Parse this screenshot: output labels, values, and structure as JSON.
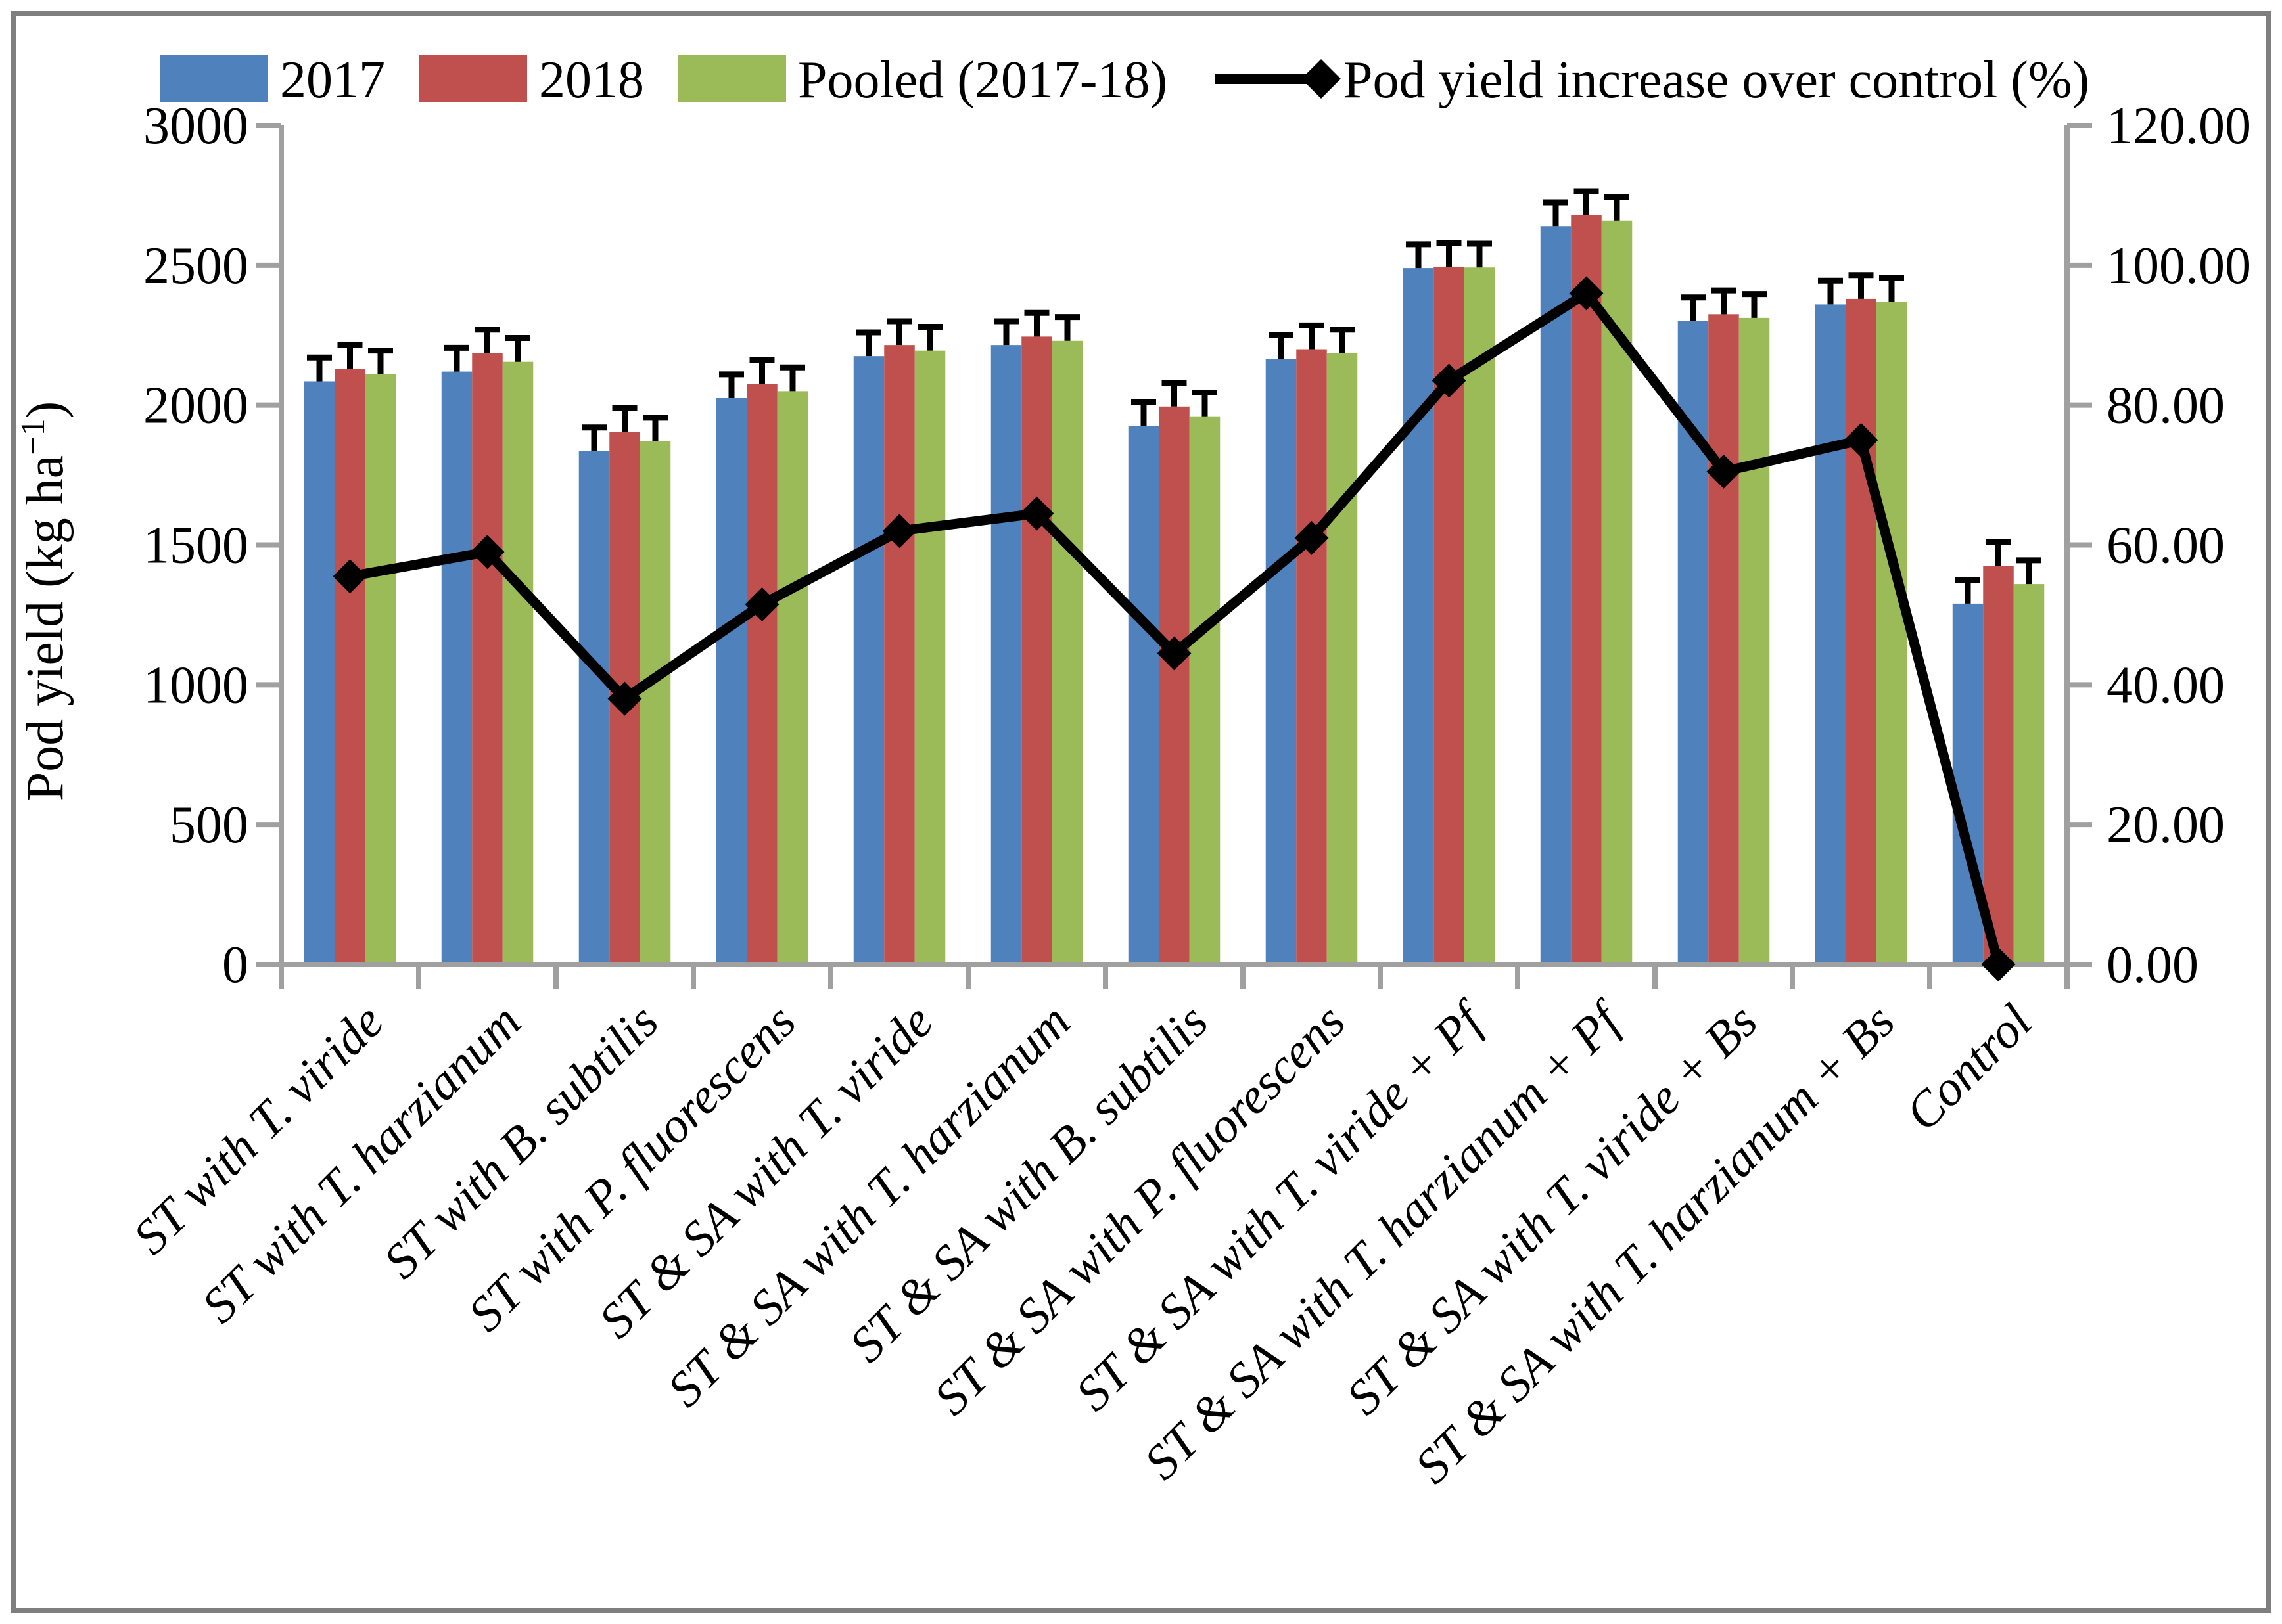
{
  "figure": {
    "background": "#FFFFFF",
    "border_color": "#7F7F7F",
    "axis_color": "#A0A0A0"
  },
  "legend": {
    "items": [
      {
        "label": "2017",
        "color": "#4F81BD",
        "marker": "swatch"
      },
      {
        "label": "2018",
        "color": "#C0504D",
        "marker": "swatch"
      },
      {
        "label": "Pooled (2017-18)",
        "color": "#9BBB59",
        "marker": "swatch"
      },
      {
        "label": "Pod yield increase over control (%)",
        "color": "#000000",
        "marker": "line-diamond"
      }
    ]
  },
  "axes": {
    "left": {
      "title_main": "Pod yield (kg ha",
      "title_sup": "−1",
      "title_close": ")",
      "tick_labels": [
        "0",
        "500",
        "1000",
        "1500",
        "2000",
        "2500",
        "3000"
      ]
    },
    "right": {
      "tick_labels": [
        "0.00",
        "20.00",
        "40.00",
        "60.00",
        "80.00",
        "100.00",
        "120.00"
      ]
    }
  },
  "chart_data": {
    "type": "bar+line",
    "title": "",
    "ylabel": "Pod yield (kg ha−1)",
    "y2label": "Pod yield increase over control (%)",
    "ylim": [
      0,
      3000
    ],
    "y_step": 500,
    "y2lim": [
      0,
      120
    ],
    "y2_step": 20,
    "grid": false,
    "legend_position": "top",
    "categories": [
      "ST with T. viride",
      "ST with T. harzianum",
      "ST with B. subtilis",
      "ST with P. fluorescens",
      "ST & SA with T. viride",
      "ST & SA with T. harzianum",
      "ST & SA with B. subtilis",
      "ST & SA with P. fluorescens",
      "ST & SA with T. viride + Pf",
      "ST & SA with T. harzianum + Pf",
      "ST & SA with T. viride + Bs",
      "ST & SA with T. harzianum + Bs",
      "Control"
    ],
    "series": [
      {
        "name": "2017",
        "color": "#4F81BD",
        "values": [
          2085,
          2120,
          1835,
          2025,
          2175,
          2215,
          1925,
          2165,
          2490,
          2640,
          2300,
          2360,
          1290
        ]
      },
      {
        "name": "2018",
        "color": "#C0504D",
        "values": [
          2130,
          2185,
          1905,
          2075,
          2215,
          2245,
          1995,
          2200,
          2495,
          2680,
          2325,
          2380,
          1425
        ]
      },
      {
        "name": "Pooled (2017-18)",
        "color": "#9BBB59",
        "values": [
          2110,
          2155,
          1870,
          2050,
          2195,
          2230,
          1960,
          2185,
          2492,
          2660,
          2312,
          2370,
          1360
        ]
      }
    ],
    "error_bar_kg": 85,
    "line_series": {
      "name": "Pod yield increase over control (%)",
      "color": "#000000",
      "values": [
        55.5,
        59.0,
        38.0,
        51.5,
        62.0,
        64.5,
        44.5,
        61.0,
        83.5,
        96.0,
        70.5,
        75.0,
        0.0
      ]
    }
  }
}
